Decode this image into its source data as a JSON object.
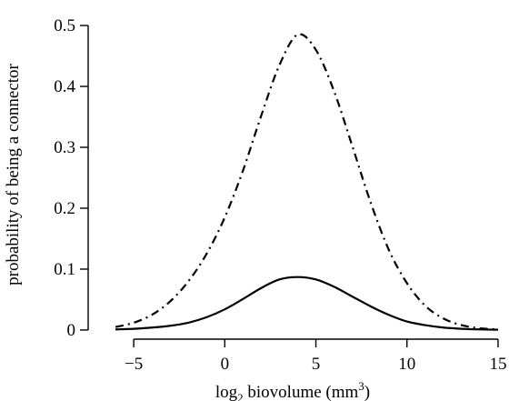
{
  "chart_data": {
    "type": "line",
    "title": "",
    "xlabel": {
      "prefix": "log",
      "subscript": "2",
      "main": " biovolume (mm",
      "superscript": "3",
      "suffix": ")"
    },
    "ylabel": "probability of being a connector",
    "xlim": [
      -7.5,
      16.5
    ],
    "ylim": [
      -0.015,
      0.515
    ],
    "xticks": [
      -5,
      0,
      5,
      10,
      15
    ],
    "xtick_labels": [
      "−5",
      "0",
      "5",
      "10",
      "15"
    ],
    "yticks": [
      0,
      0.1,
      0.2,
      0.3,
      0.4,
      0.5
    ],
    "ytick_labels": [
      "0",
      "0.1",
      "0.2",
      "0.3",
      "0.4",
      "0.5"
    ],
    "grid": false,
    "legend": "none",
    "series": [
      {
        "style": "dash-dot",
        "x": [
          -6,
          -5,
          -4,
          -3,
          -2,
          -1,
          0,
          1,
          2,
          3,
          4,
          5,
          6,
          7,
          8,
          9,
          10,
          11,
          12,
          13,
          14,
          15
        ],
        "y": [
          0.005,
          0.012,
          0.025,
          0.047,
          0.08,
          0.125,
          0.185,
          0.262,
          0.352,
          0.435,
          0.485,
          0.46,
          0.392,
          0.302,
          0.21,
          0.132,
          0.077,
          0.04,
          0.019,
          0.008,
          0.003,
          0.001
        ]
      },
      {
        "style": "solid",
        "x": [
          -6,
          -5,
          -4,
          -3,
          -2,
          -1,
          0,
          1,
          2,
          3,
          4,
          5,
          6,
          7,
          8,
          9,
          10,
          11,
          12,
          13,
          14,
          15
        ],
        "y": [
          0.001,
          0.002,
          0.004,
          0.007,
          0.012,
          0.021,
          0.034,
          0.051,
          0.069,
          0.083,
          0.087,
          0.083,
          0.071,
          0.055,
          0.039,
          0.025,
          0.014,
          0.008,
          0.004,
          0.002,
          0.001,
          0.0005
        ]
      }
    ]
  }
}
